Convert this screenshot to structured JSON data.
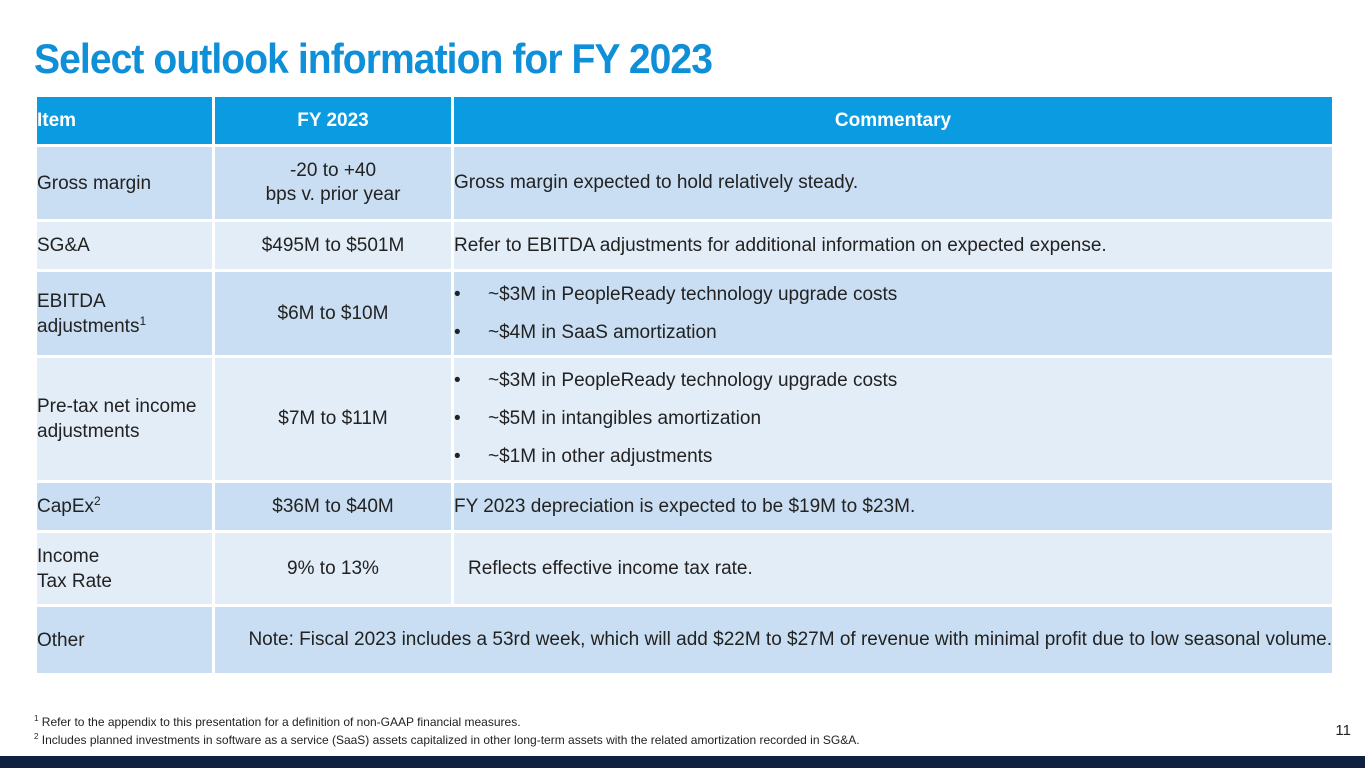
{
  "slide": {
    "title": "Select outlook information for FY 2023",
    "page_number": "11"
  },
  "table": {
    "headers": {
      "item": "Item",
      "fy": "FY 2023",
      "commentary": "Commentary"
    },
    "rows": [
      {
        "item_lines": [
          "Gross margin"
        ],
        "value_lines": [
          "-20 to +40",
          "bps v. prior year"
        ],
        "commentary": "Gross margin expected to hold relatively steady."
      },
      {
        "item_lines": [
          "SG&A"
        ],
        "value_lines": [
          "$495M to $501M"
        ],
        "commentary": "Refer to EBITDA adjustments for additional information on expected expense."
      },
      {
        "item_lines": [
          "EBITDA",
          "adjustments"
        ],
        "item_sup": "1",
        "value_lines": [
          "$6M to $10M"
        ],
        "bullet": "•",
        "bullets": [
          "~$3M in PeopleReady technology upgrade costs",
          "~$4M in SaaS amortization"
        ]
      },
      {
        "item_lines": [
          "Pre-tax net income",
          "adjustments"
        ],
        "value_lines": [
          "$7M to $11M"
        ],
        "bullet": "•",
        "bullets": [
          "~$3M in PeopleReady technology upgrade costs",
          "~$5M in intangibles amortization",
          "~$1M in other adjustments"
        ]
      },
      {
        "item_lines": [
          "CapEx"
        ],
        "item_sup": "2",
        "value_lines": [
          "$36M to $40M"
        ],
        "commentary": "FY 2023 depreciation is expected to be $19M to $23M."
      },
      {
        "item_lines": [
          "Income",
          "Tax Rate"
        ],
        "value_lines": [
          "9% to 13%"
        ],
        "commentary": "Reflects effective income tax rate."
      },
      {
        "item_lines": [
          "Other"
        ],
        "note": "Note: Fiscal 2023 includes a 53rd week, which will add $22M to $27M of revenue with minimal profit due to low seasonal volume."
      }
    ]
  },
  "footnotes": [
    {
      "mark": "1",
      "text": "Refer to the appendix to this presentation for a definition of non-GAAP financial measures."
    },
    {
      "mark": "2",
      "text": "Includes planned investments in software as a service (SaaS) assets capitalized in other long-term assets with the related amortization recorded in SG&A."
    }
  ],
  "colors": {
    "title": "#0f8fd8",
    "header_bg": "#0a9be0",
    "row_dark": "#c9def2",
    "row_light": "#e3edf8",
    "bottom_bar": "#0e2240"
  }
}
